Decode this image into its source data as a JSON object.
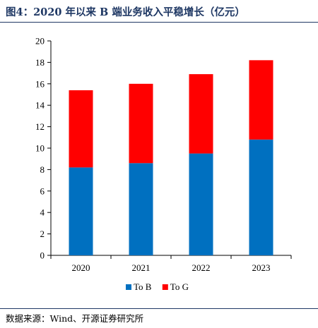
{
  "header": {
    "title": "图4：2020 年以来 B 端业务收入平稳增长（亿元）"
  },
  "footer": {
    "source": "数据来源：Wind、开源证券研究所"
  },
  "colors": {
    "to_b": "#0070c0",
    "to_g": "#ff0000",
    "frame": "#1f3864"
  },
  "chart_data": {
    "type": "bar",
    "stacked": true,
    "categories": [
      "2020",
      "2021",
      "2022",
      "2023"
    ],
    "series": [
      {
        "name": "To B",
        "values": [
          8.2,
          8.6,
          9.5,
          10.8
        ],
        "color": "#0070c0"
      },
      {
        "name": "To G",
        "values": [
          7.2,
          7.4,
          7.4,
          7.4
        ],
        "color": "#ff0000"
      }
    ],
    "ylim": [
      0,
      20
    ],
    "yticks": [
      "0",
      "2",
      "4",
      "6",
      "8",
      "10",
      "12",
      "14",
      "16",
      "18",
      "20"
    ],
    "grid": false,
    "legend": "bottom-center"
  }
}
